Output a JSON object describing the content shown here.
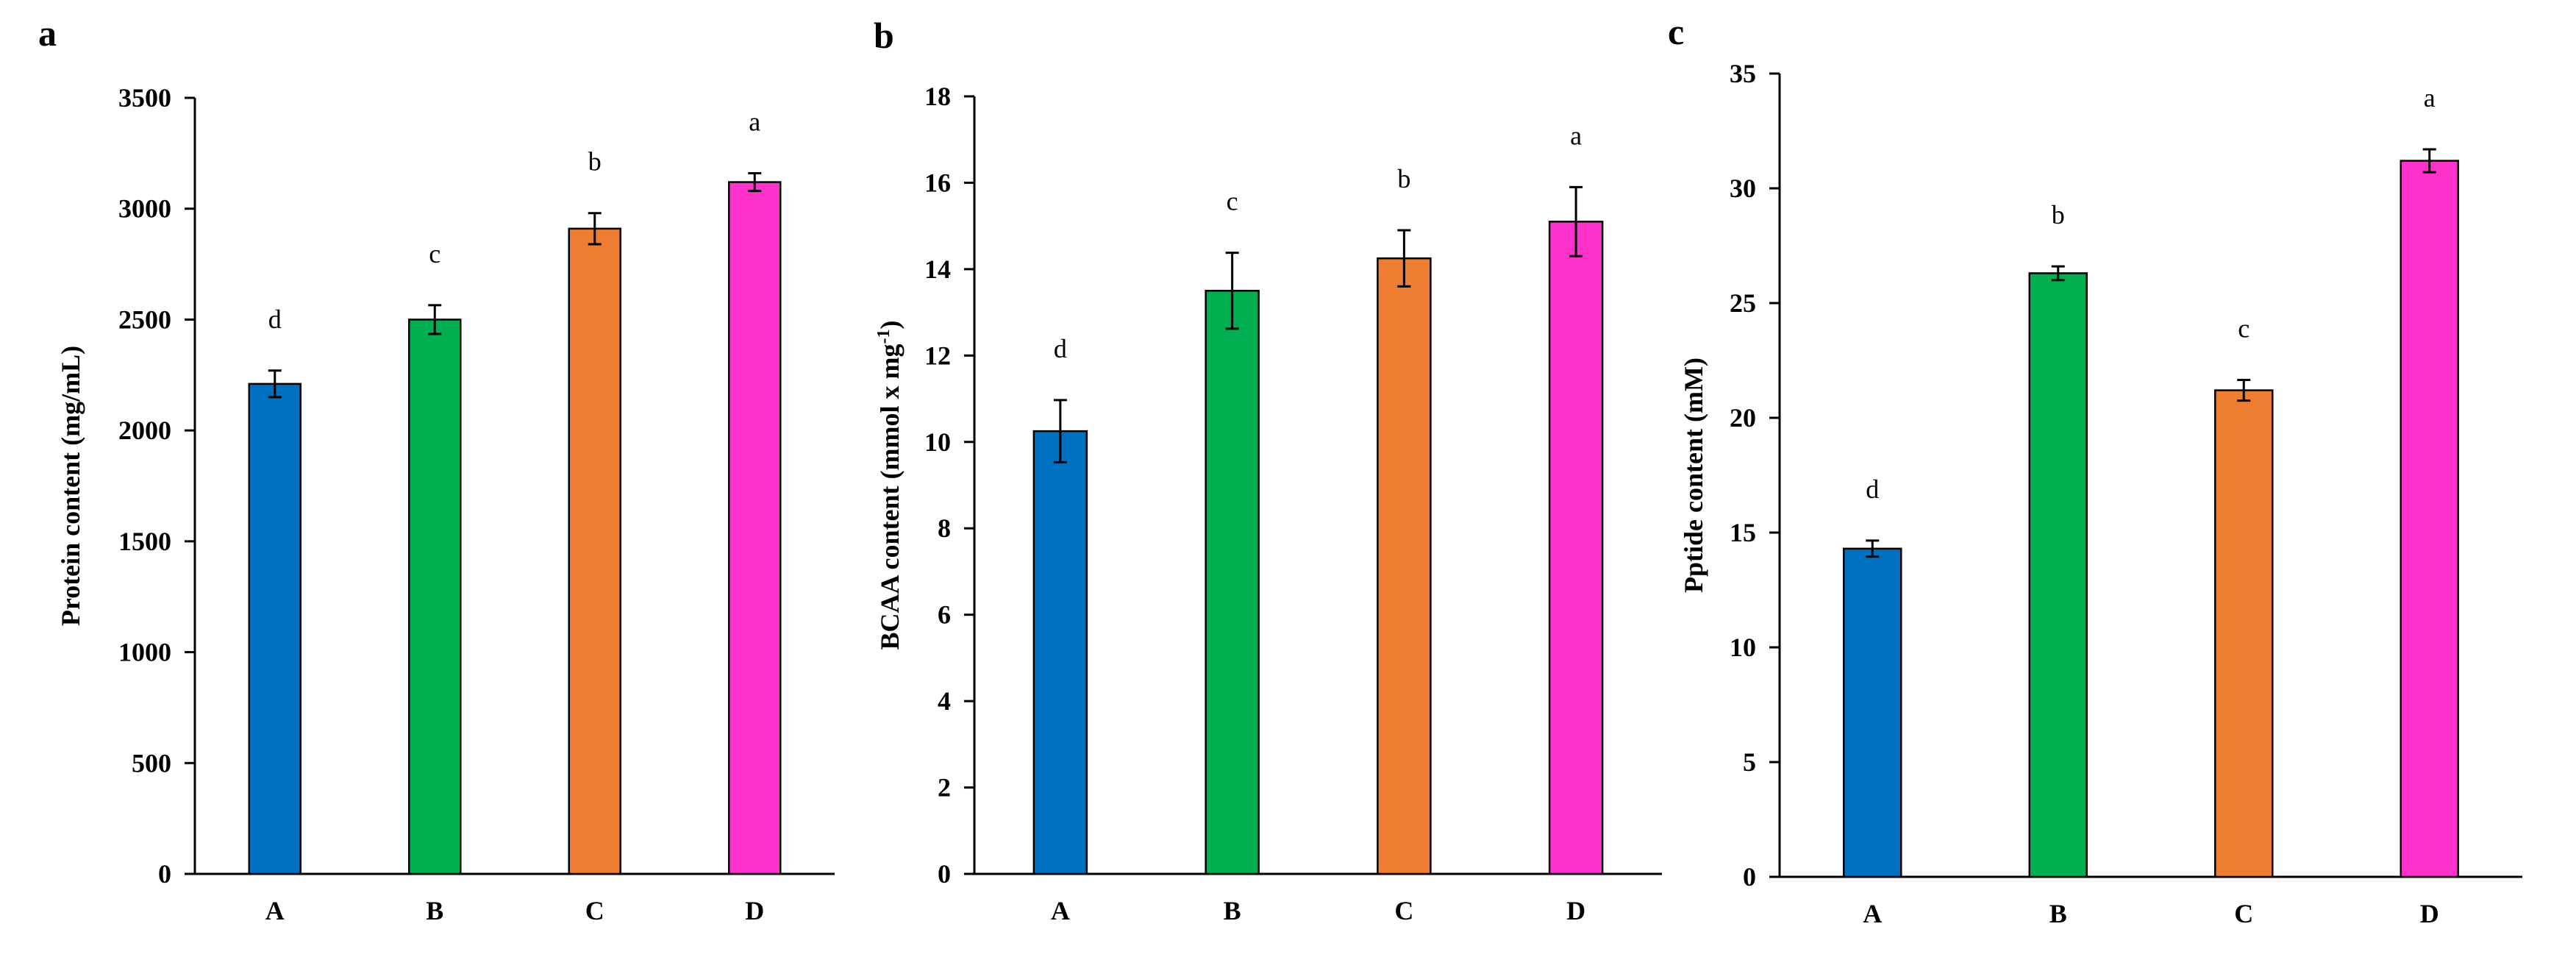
{
  "chart_data": [
    {
      "type": "bar",
      "panel_label": "a",
      "categories": [
        "A",
        "B",
        "C",
        "D"
      ],
      "values": [
        2210,
        2500,
        2910,
        3120
      ],
      "errors": [
        60,
        65,
        70,
        40
      ],
      "significance": [
        "d",
        "c",
        "b",
        "a"
      ],
      "colors": [
        "#0070C0",
        "#00B050",
        "#ED7D31",
        "#FF33CC"
      ],
      "ylabel": "Protein content (mg/mL)",
      "ylabel_parts": [
        {
          "text": "Protein content (mg/mL)",
          "sup": false
        }
      ],
      "xlabel": "",
      "ylim": [
        0,
        3500
      ],
      "yticks": [
        0,
        500,
        1000,
        1500,
        2000,
        2500,
        3000,
        3500
      ],
      "ytick_labels": [
        "0",
        "500",
        "1000",
        "1500",
        "2000",
        "2500",
        "3000",
        "3500"
      ],
      "grid": false
    },
    {
      "type": "bar",
      "panel_label": "b",
      "categories": [
        "A",
        "B",
        "C",
        "D"
      ],
      "values": [
        10.25,
        13.5,
        14.25,
        15.1
      ],
      "errors": [
        0.72,
        0.88,
        0.65,
        0.8
      ],
      "significance": [
        "d",
        "c",
        "b",
        "a"
      ],
      "colors": [
        "#0070C0",
        "#00B050",
        "#ED7D31",
        "#FF33CC"
      ],
      "ylabel": "BCAA content (mmol x mg-1)",
      "ylabel_parts": [
        {
          "text": "BCAA content (mmol x mg",
          "sup": false
        },
        {
          "text": "-1",
          "sup": true
        },
        {
          "text": ")",
          "sup": false
        }
      ],
      "xlabel": "",
      "ylim": [
        0,
        18
      ],
      "yticks": [
        0,
        2,
        4,
        6,
        8,
        10,
        12,
        14,
        16,
        18
      ],
      "ytick_labels": [
        "0",
        "2",
        "4",
        "6",
        "8",
        "10",
        "12",
        "14",
        "16",
        "18"
      ],
      "grid": false
    },
    {
      "type": "bar",
      "panel_label": "c",
      "categories": [
        "A",
        "B",
        "C",
        "D"
      ],
      "values": [
        14.3,
        26.3,
        21.2,
        31.2
      ],
      "errors": [
        0.35,
        0.3,
        0.45,
        0.5
      ],
      "significance": [
        "d",
        "b",
        "c",
        "a"
      ],
      "colors": [
        "#0070C0",
        "#00B050",
        "#ED7D31",
        "#FF33CC"
      ],
      "ylabel": "Pptide content (mM)",
      "ylabel_parts": [
        {
          "text": "Pptide content (mM)",
          "sup": false
        }
      ],
      "xlabel": "",
      "ylim": [
        0,
        35
      ],
      "yticks": [
        0,
        5,
        10,
        15,
        20,
        25,
        30,
        35
      ],
      "ytick_labels": [
        "0",
        "5",
        "10",
        "15",
        "20",
        "25",
        "30",
        "35"
      ],
      "grid": false
    }
  ]
}
